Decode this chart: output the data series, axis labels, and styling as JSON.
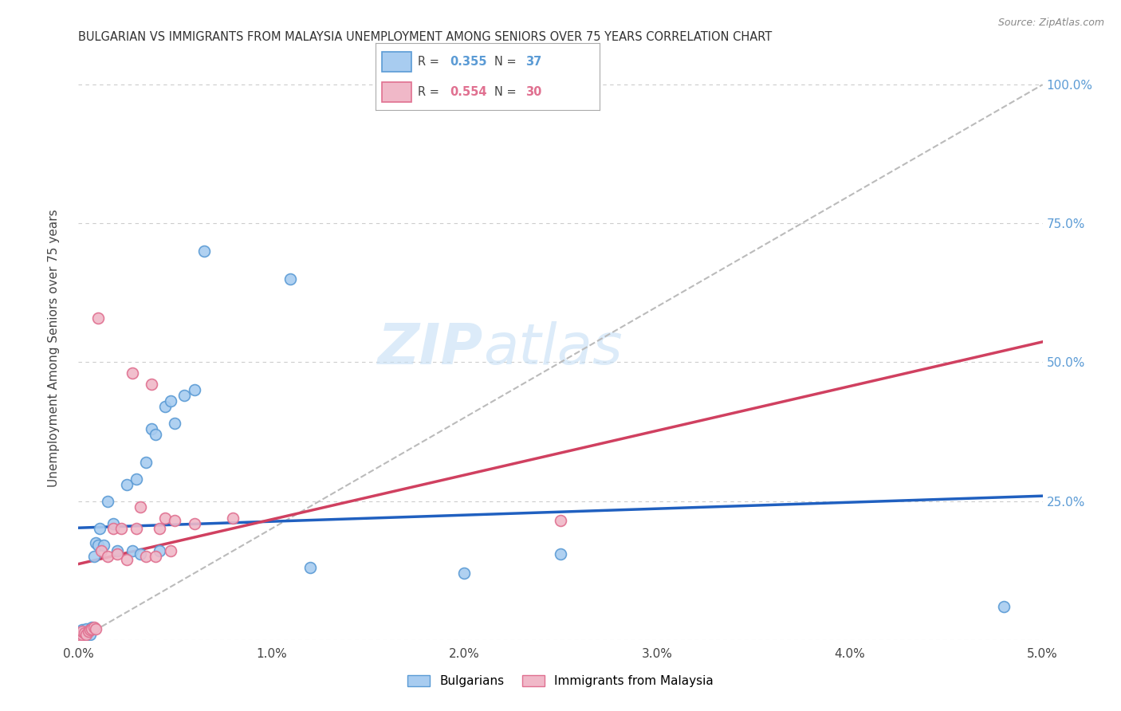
{
  "title": "BULGARIAN VS IMMIGRANTS FROM MALAYSIA UNEMPLOYMENT AMONG SENIORS OVER 75 YEARS CORRELATION CHART",
  "source": "Source: ZipAtlas.com",
  "ylabel": "Unemployment Among Seniors over 75 years",
  "xlim": [
    0.0,
    0.05
  ],
  "ylim": [
    0.0,
    1.05
  ],
  "x_ticks": [
    0.0,
    0.01,
    0.02,
    0.03,
    0.04,
    0.05
  ],
  "x_tick_labels": [
    "0.0%",
    "1.0%",
    "2.0%",
    "3.0%",
    "4.0%",
    "5.0%"
  ],
  "y_ticks": [
    0.0,
    0.25,
    0.5,
    0.75,
    1.0
  ],
  "y_tick_labels": [
    "",
    "25.0%",
    "50.0%",
    "75.0%",
    "100.0%"
  ],
  "bulgarians_color": "#a8ccf0",
  "malaysia_color": "#f0b8c8",
  "bulgarians_edge": "#5b9bd5",
  "malaysia_edge": "#e07090",
  "trend_bulgarian_color": "#2060c0",
  "trend_malaysia_color": "#d04060",
  "diagonal_color": "#bbbbbb",
  "R_bulgarian": 0.355,
  "N_bulgarian": 37,
  "R_malaysia": 0.554,
  "N_malaysia": 30,
  "watermark_zip": "ZIP",
  "watermark_atlas": "atlas",
  "marker_size": 100,
  "bulgarians_x": [
    0.0001,
    0.0002,
    0.0002,
    0.0003,
    0.0003,
    0.0004,
    0.0004,
    0.0005,
    0.0006,
    0.0007,
    0.0008,
    0.0009,
    0.001,
    0.0011,
    0.0013,
    0.0015,
    0.0018,
    0.002,
    0.0025,
    0.0028,
    0.003,
    0.0032,
    0.0035,
    0.0038,
    0.004,
    0.0042,
    0.0045,
    0.0048,
    0.005,
    0.0055,
    0.006,
    0.0065,
    0.011,
    0.012,
    0.02,
    0.025,
    0.048
  ],
  "bulgarians_y": [
    0.01,
    0.012,
    0.018,
    0.01,
    0.015,
    0.008,
    0.02,
    0.015,
    0.01,
    0.022,
    0.15,
    0.175,
    0.17,
    0.2,
    0.17,
    0.25,
    0.21,
    0.16,
    0.28,
    0.16,
    0.29,
    0.155,
    0.32,
    0.38,
    0.37,
    0.16,
    0.42,
    0.43,
    0.39,
    0.44,
    0.45,
    0.7,
    0.65,
    0.13,
    0.12,
    0.155,
    0.06
  ],
  "malaysia_x": [
    0.0001,
    0.0002,
    0.0002,
    0.0003,
    0.0004,
    0.0005,
    0.0006,
    0.0007,
    0.0008,
    0.0009,
    0.001,
    0.0012,
    0.0015,
    0.0018,
    0.002,
    0.0022,
    0.0025,
    0.0028,
    0.003,
    0.0032,
    0.0035,
    0.0038,
    0.004,
    0.0042,
    0.0045,
    0.0048,
    0.005,
    0.006,
    0.008,
    0.025
  ],
  "malaysia_y": [
    0.008,
    0.01,
    0.015,
    0.012,
    0.01,
    0.015,
    0.018,
    0.02,
    0.022,
    0.02,
    0.58,
    0.16,
    0.15,
    0.2,
    0.155,
    0.2,
    0.145,
    0.48,
    0.2,
    0.24,
    0.15,
    0.46,
    0.15,
    0.2,
    0.22,
    0.16,
    0.215,
    0.21,
    0.22,
    0.215
  ]
}
